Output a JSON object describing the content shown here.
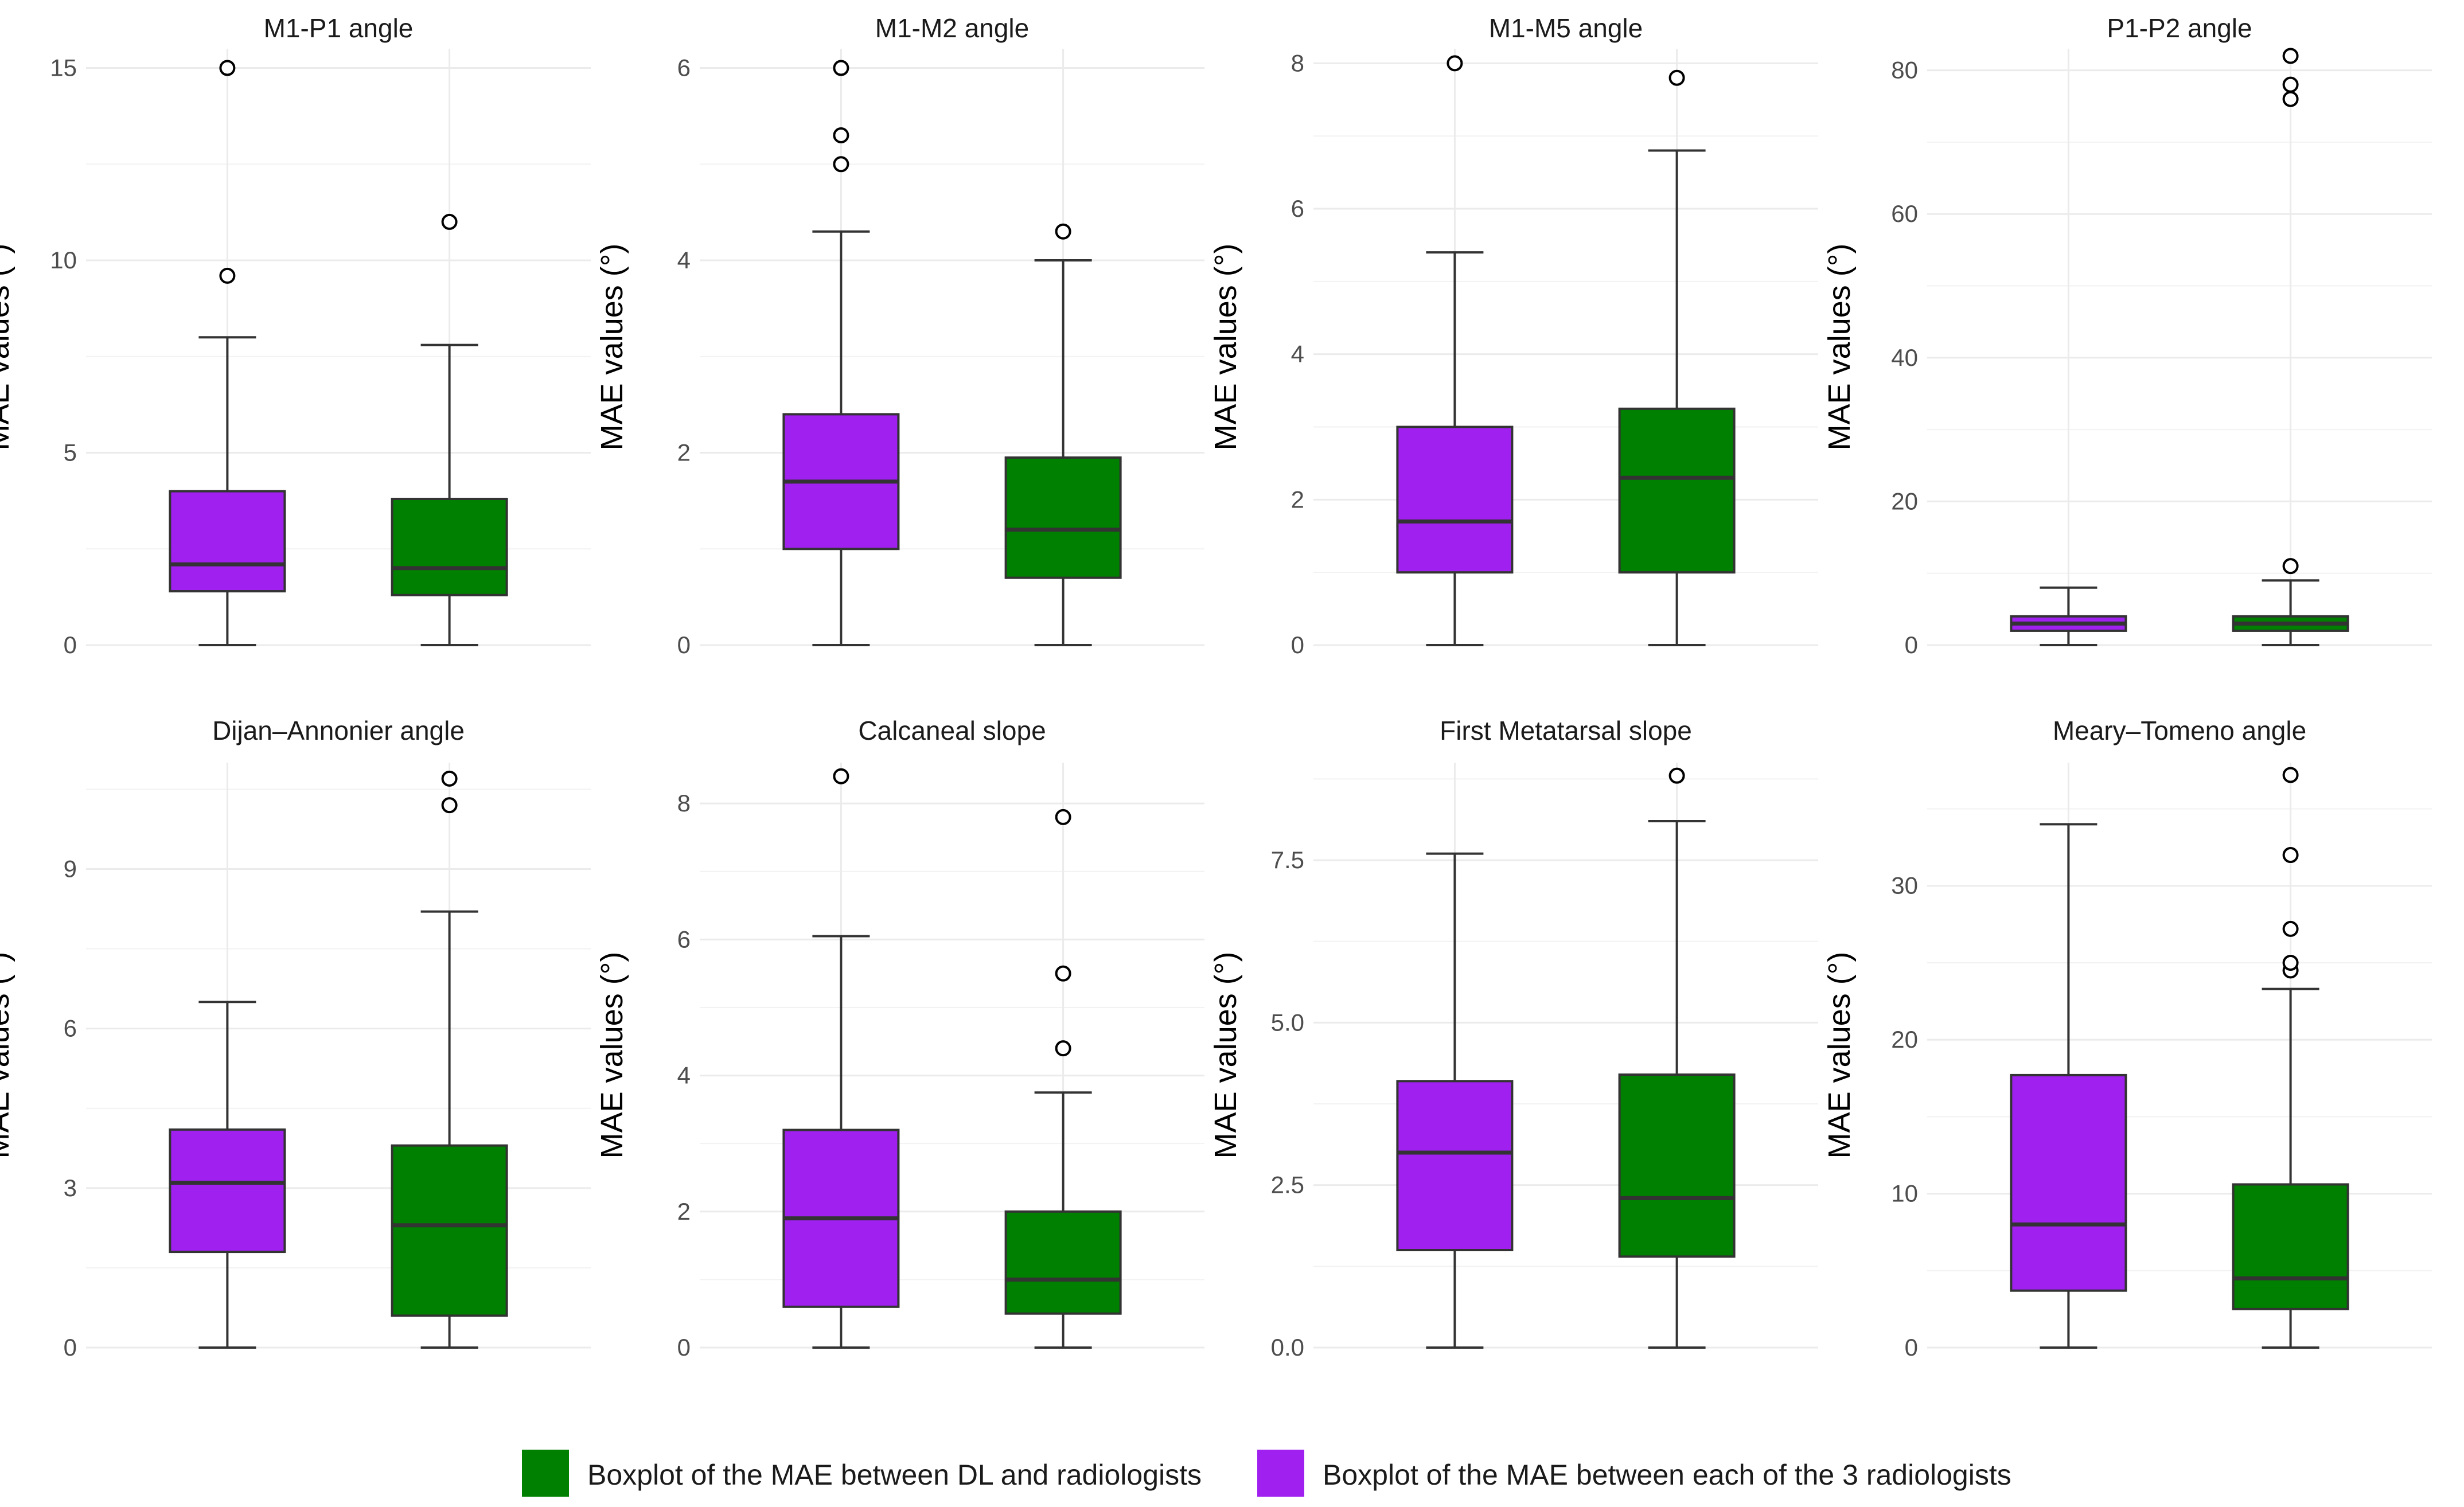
{
  "legend": {
    "items": [
      {
        "label": "Boxplot of the MAE between DL and radiologists",
        "color": "#008000"
      },
      {
        "label": "Boxplot of the MAE between each of the 3 radiologists",
        "color": "#A020F0"
      }
    ]
  },
  "chart_data": [
    {
      "type": "boxplot",
      "title": "M1-P1 angle",
      "ylabel": "MAE values (°)",
      "ylim": [
        0,
        15.5
      ],
      "yticks": [
        0,
        5,
        10,
        15
      ],
      "ytick_labels": [
        "0",
        "5",
        "10",
        "15"
      ],
      "series": [
        {
          "name": "Boxplot of the MAE between each of the 3 radiologists",
          "color": "#A020F0",
          "whisker_low": 0,
          "q1": 1.4,
          "median": 2.1,
          "q3": 4.0,
          "whisker_high": 8.0,
          "outliers": [
            9.6,
            15.0
          ]
        },
        {
          "name": "Boxplot of the MAE between DL and radiologists",
          "color": "#008000",
          "whisker_low": 0,
          "q1": 1.3,
          "median": 2.0,
          "q3": 3.8,
          "whisker_high": 7.8,
          "outliers": [
            11.0
          ]
        }
      ]
    },
    {
      "type": "boxplot",
      "title": "M1-M2 angle",
      "ylabel": "MAE values (°)",
      "ylim": [
        0,
        6.2
      ],
      "yticks": [
        0,
        2,
        4,
        6
      ],
      "ytick_labels": [
        "0",
        "2",
        "4",
        "6"
      ],
      "series": [
        {
          "name": "Boxplot of the MAE between each of the 3 radiologists",
          "color": "#A020F0",
          "whisker_low": 0,
          "q1": 1.0,
          "median": 1.7,
          "q3": 2.4,
          "whisker_high": 4.3,
          "outliers": [
            5.0,
            5.3,
            6.0
          ]
        },
        {
          "name": "Boxplot of the MAE between DL and radiologists",
          "color": "#008000",
          "whisker_low": 0,
          "q1": 0.7,
          "median": 1.2,
          "q3": 1.95,
          "whisker_high": 4.0,
          "outliers": [
            4.3
          ]
        }
      ]
    },
    {
      "type": "boxplot",
      "title": "M1-M5 angle",
      "ylabel": "MAE values (°)",
      "ylim": [
        0,
        8.2
      ],
      "yticks": [
        0,
        2,
        4,
        6,
        8
      ],
      "ytick_labels": [
        "0",
        "2",
        "4",
        "6",
        "8"
      ],
      "series": [
        {
          "name": "Boxplot of the MAE between each of the 3 radiologists",
          "color": "#A020F0",
          "whisker_low": 0,
          "q1": 1.0,
          "median": 1.7,
          "q3": 3.0,
          "whisker_high": 5.4,
          "outliers": [
            8.0
          ]
        },
        {
          "name": "Boxplot of the MAE between DL and radiologists",
          "color": "#008000",
          "whisker_low": 0,
          "q1": 1.0,
          "median": 2.3,
          "q3": 3.25,
          "whisker_high": 6.8,
          "outliers": [
            7.8
          ]
        }
      ]
    },
    {
      "type": "boxplot",
      "title": "P1-P2 angle",
      "ylabel": "MAE values (°)",
      "ylim": [
        0,
        83
      ],
      "yticks": [
        0,
        20,
        40,
        60,
        80
      ],
      "ytick_labels": [
        "0",
        "20",
        "40",
        "60",
        "80"
      ],
      "series": [
        {
          "name": "Boxplot of the MAE between each of the 3 radiologists",
          "color": "#A020F0",
          "whisker_low": 0,
          "q1": 2.0,
          "median": 3.0,
          "q3": 4.0,
          "whisker_high": 8.0,
          "outliers": []
        },
        {
          "name": "Boxplot of the MAE between DL and radiologists",
          "color": "#008000",
          "whisker_low": 0,
          "q1": 2.0,
          "median": 3.0,
          "q3": 4.0,
          "whisker_high": 9.0,
          "outliers": [
            11.0,
            76.0,
            78.0,
            82.0
          ]
        }
      ]
    },
    {
      "type": "boxplot",
      "title": "Dijan–Annonier angle",
      "ylabel": "MAE values (°)",
      "ylim": [
        0,
        11
      ],
      "yticks": [
        0,
        3,
        6,
        9
      ],
      "ytick_labels": [
        "0",
        "3",
        "6",
        "9"
      ],
      "series": [
        {
          "name": "Boxplot of the MAE between each of the 3 radiologists",
          "color": "#A020F0",
          "whisker_low": 0,
          "q1": 1.8,
          "median": 3.1,
          "q3": 4.1,
          "whisker_high": 6.5,
          "outliers": []
        },
        {
          "name": "Boxplot of the MAE between DL and radiologists",
          "color": "#008000",
          "whisker_low": 0,
          "q1": 0.6,
          "median": 2.3,
          "q3": 3.8,
          "whisker_high": 8.2,
          "outliers": [
            10.2,
            10.7
          ]
        }
      ]
    },
    {
      "type": "boxplot",
      "title": "Calcaneal slope",
      "ylabel": "MAE values (°)",
      "ylim": [
        0,
        8.6
      ],
      "yticks": [
        0,
        2,
        4,
        6,
        8
      ],
      "ytick_labels": [
        "0",
        "2",
        "4",
        "6",
        "8"
      ],
      "series": [
        {
          "name": "Boxplot of the MAE between each of the 3 radiologists",
          "color": "#A020F0",
          "whisker_low": 0,
          "q1": 0.6,
          "median": 1.9,
          "q3": 3.2,
          "whisker_high": 6.05,
          "outliers": [
            8.4
          ]
        },
        {
          "name": "Boxplot of the MAE between DL and radiologists",
          "color": "#008000",
          "whisker_low": 0,
          "q1": 0.5,
          "median": 1.0,
          "q3": 2.0,
          "whisker_high": 3.75,
          "outliers": [
            4.4,
            5.5,
            7.8
          ]
        }
      ]
    },
    {
      "type": "boxplot",
      "title": "First Metatarsal slope",
      "ylabel": "MAE values (°)",
      "ylim": [
        0,
        9.0
      ],
      "yticks": [
        0,
        2.5,
        5.0,
        7.5
      ],
      "ytick_labels": [
        "0.0",
        "2.5",
        "5.0",
        "7.5"
      ],
      "series": [
        {
          "name": "Boxplot of the MAE between each of the 3 radiologists",
          "color": "#A020F0",
          "whisker_low": 0,
          "q1": 1.5,
          "median": 3.0,
          "q3": 4.1,
          "whisker_high": 7.6,
          "outliers": []
        },
        {
          "name": "Boxplot of the MAE between DL and radiologists",
          "color": "#008000",
          "whisker_low": 0,
          "q1": 1.4,
          "median": 2.3,
          "q3": 4.2,
          "whisker_high": 8.1,
          "outliers": [
            8.8
          ]
        }
      ]
    },
    {
      "type": "boxplot",
      "title": "Meary–Tomeno angle",
      "ylabel": "MAE values (°)",
      "ylim": [
        0,
        38
      ],
      "yticks": [
        0,
        10,
        20,
        30
      ],
      "ytick_labels": [
        "0",
        "10",
        "20",
        "30"
      ],
      "series": [
        {
          "name": "Boxplot of the MAE between each of the 3 radiologists",
          "color": "#A020F0",
          "whisker_low": 0,
          "q1": 3.7,
          "median": 8.0,
          "q3": 17.7,
          "whisker_high": 34.0,
          "outliers": []
        },
        {
          "name": "Boxplot of the MAE between DL and radiologists",
          "color": "#008000",
          "whisker_low": 0,
          "q1": 2.5,
          "median": 4.5,
          "q3": 10.6,
          "whisker_high": 23.3,
          "outliers": [
            24.5,
            25.0,
            27.2,
            32.0,
            37.2
          ]
        }
      ]
    }
  ]
}
